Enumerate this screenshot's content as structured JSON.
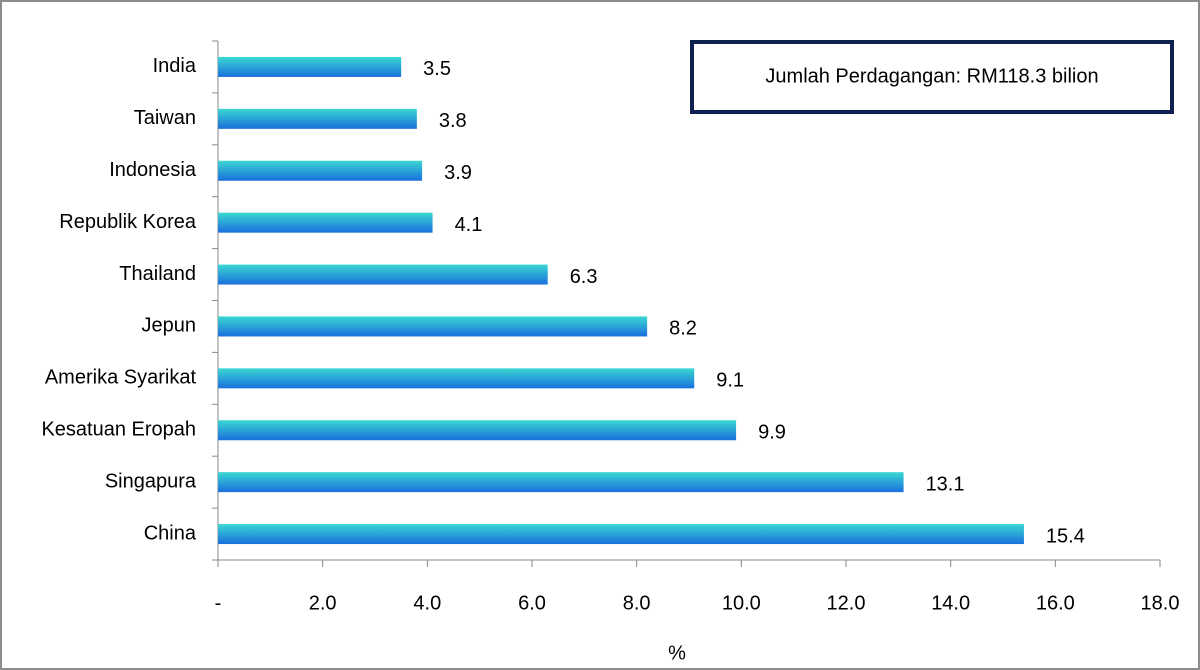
{
  "chart_data": {
    "type": "bar",
    "orientation": "horizontal",
    "categories": [
      "India",
      "Taiwan",
      "Indonesia",
      "Republik Korea",
      "Thailand",
      "Jepun",
      "Amerika Syarikat",
      "Kesatuan Eropah",
      "Singapura",
      "China"
    ],
    "values": [
      3.5,
      3.8,
      3.9,
      4.1,
      6.3,
      8.2,
      9.1,
      9.9,
      13.1,
      15.4
    ],
    "color": [
      "#3ad8d2",
      "#1a6fdc"
    ],
    "xlim": [
      0,
      18
    ],
    "xticks": [
      {
        "value": 0,
        "label": "-"
      },
      {
        "value": 2,
        "label": "2.0"
      },
      {
        "value": 4,
        "label": "4.0"
      },
      {
        "value": 6,
        "label": "6.0"
      },
      {
        "value": 8,
        "label": "8.0"
      },
      {
        "value": 10,
        "label": "10.0"
      },
      {
        "value": 12,
        "label": "12.0"
      },
      {
        "value": 14,
        "label": "14.0"
      },
      {
        "value": 16,
        "label": "16.0"
      },
      {
        "value": 18,
        "label": "18.0"
      }
    ],
    "xlabel": "%",
    "annotation": "Jumlah Perdagangan: RM118.3 bilion",
    "grid": false
  }
}
